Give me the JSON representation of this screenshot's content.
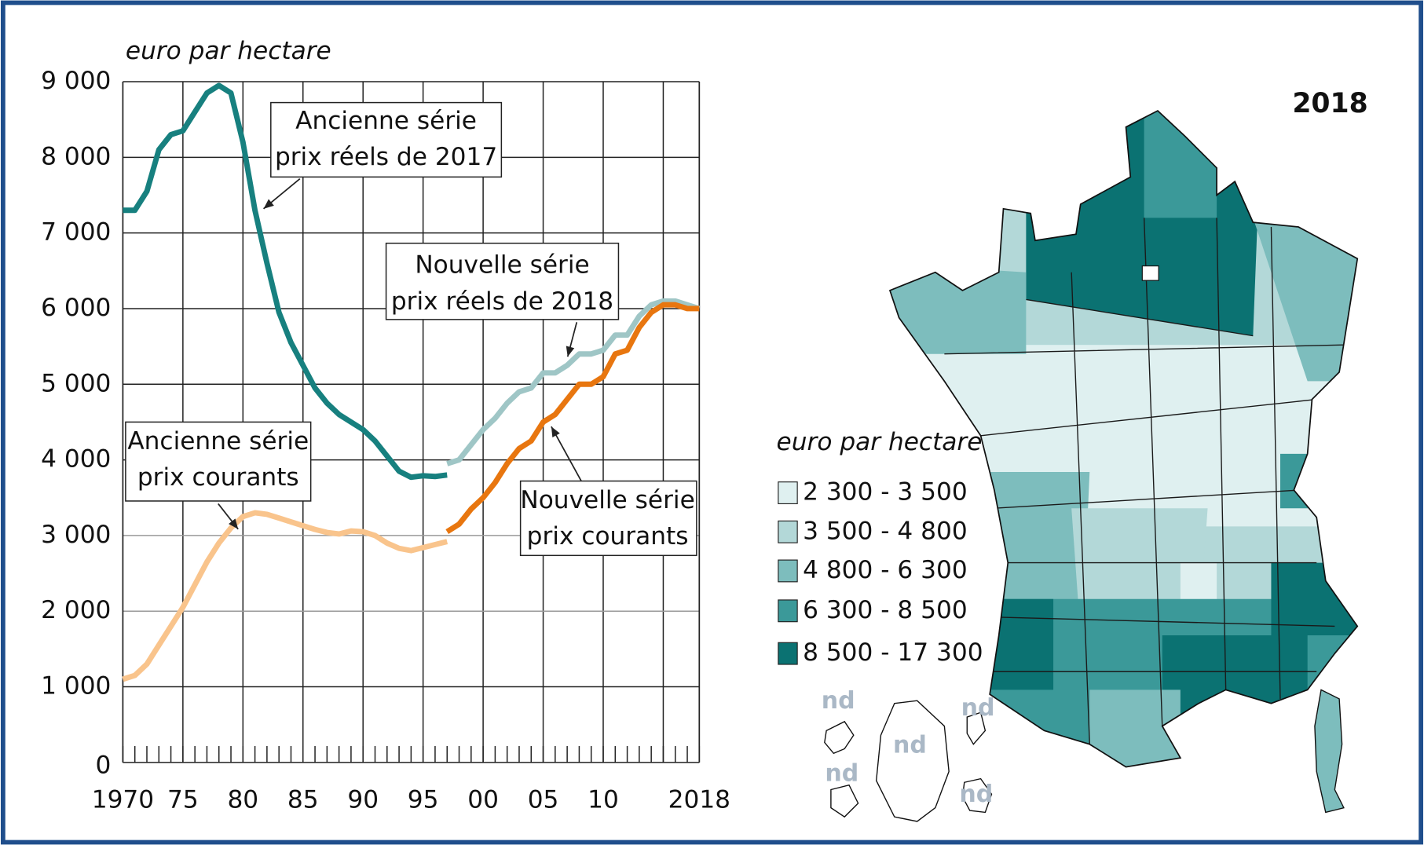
{
  "chart_data": [
    {
      "type": "line",
      "y_label": "euro par hectare",
      "x": [
        1970,
        1971,
        1972,
        1973,
        1974,
        1975,
        1976,
        1977,
        1978,
        1979,
        1980,
        1981,
        1982,
        1983,
        1984,
        1985,
        1986,
        1987,
        1988,
        1989,
        1990,
        1991,
        1992,
        1993,
        1994,
        1995,
        1996,
        1997,
        1998,
        1999,
        2000,
        2001,
        2002,
        2003,
        2004,
        2005,
        2006,
        2007,
        2008,
        2009,
        2010,
        2011,
        2012,
        2013,
        2014,
        2015,
        2016,
        2017,
        2018
      ],
      "xlim": [
        1970,
        2018
      ],
      "xticks": [
        1970,
        {
          "value": 1975,
          "label": "75"
        },
        {
          "value": 1980,
          "label": "80"
        },
        {
          "value": 1985,
          "label": "85"
        },
        {
          "value": 1990,
          "label": "90"
        },
        {
          "value": 1995,
          "label": "95"
        },
        {
          "value": 2000,
          "label": "00"
        },
        {
          "value": 2005,
          "label": "05"
        },
        {
          "value": 2010,
          "label": "10"
        },
        2018
      ],
      "ylim": [
        0,
        9000
      ],
      "yticks": [
        0,
        {
          "value": 1000,
          "label": "1 000"
        },
        {
          "value": 2000,
          "label": "2 000"
        },
        {
          "value": 3000,
          "label": "3 000"
        },
        {
          "value": 4000,
          "label": "4 000"
        },
        {
          "value": 5000,
          "label": "5 000"
        },
        {
          "value": 6000,
          "label": "6 000"
        },
        {
          "value": 7000,
          "label": "7 000"
        },
        {
          "value": 8000,
          "label": "8 000"
        },
        {
          "value": 9000,
          "label": "9 000"
        }
      ],
      "grid": true,
      "series": [
        {
          "name": [
            "Ancienne série",
            "prix réels de 2017"
          ],
          "color": "#17807f",
          "values": [
            7300,
            7300,
            7550,
            8100,
            8300,
            8350,
            8600,
            8850,
            8950,
            8850,
            8200,
            7300,
            6600,
            5950,
            5550,
            5250,
            4950,
            4750,
            4600,
            4500,
            4400,
            4250,
            4050,
            3850,
            3770,
            3790,
            3780,
            3800,
            null,
            null,
            null,
            null,
            null,
            null,
            null,
            null,
            null,
            null,
            null,
            null,
            null,
            null,
            null,
            null,
            null,
            null,
            null,
            null,
            null
          ]
        },
        {
          "name": [
            "Ancienne série",
            "prix courants"
          ],
          "color": "#f9c48c",
          "values": [
            1100,
            1150,
            1300,
            1550,
            1800,
            2050,
            2350,
            2650,
            2900,
            3100,
            3250,
            3300,
            3280,
            3230,
            3180,
            3130,
            3080,
            3040,
            3020,
            3060,
            3050,
            3000,
            2900,
            2830,
            2800,
            2840,
            2880,
            2920,
            null,
            null,
            null,
            null,
            null,
            null,
            null,
            null,
            null,
            null,
            null,
            null,
            null,
            null,
            null,
            null,
            null,
            null,
            null,
            null,
            null
          ]
        },
        {
          "name": [
            "Nouvelle série",
            "prix réels de 2018"
          ],
          "color": "#9fc6c6",
          "values": [
            null,
            null,
            null,
            null,
            null,
            null,
            null,
            null,
            null,
            null,
            null,
            null,
            null,
            null,
            null,
            null,
            null,
            null,
            null,
            null,
            null,
            null,
            null,
            null,
            null,
            null,
            null,
            3950,
            4000,
            4200,
            4400,
            4550,
            4750,
            4900,
            4950,
            5150,
            5150,
            5250,
            5400,
            5400,
            5450,
            5650,
            5650,
            5900,
            6050,
            6100,
            6100,
            6050,
            6000
          ]
        },
        {
          "name": [
            "Nouvelle série",
            "prix courants"
          ],
          "color": "#e8760f",
          "values": [
            null,
            null,
            null,
            null,
            null,
            null,
            null,
            null,
            null,
            null,
            null,
            null,
            null,
            null,
            null,
            null,
            null,
            null,
            null,
            null,
            null,
            null,
            null,
            null,
            null,
            null,
            null,
            3050,
            3150,
            3350,
            3500,
            3700,
            3950,
            4150,
            4250,
            4500,
            4600,
            4800,
            5000,
            5000,
            5100,
            5400,
            5450,
            5750,
            5950,
            6050,
            6050,
            6000,
            6000
          ]
        }
      ]
    },
    {
      "type": "map",
      "title": "2018",
      "legend_title": "euro par hectare",
      "missing_label": "nd",
      "classes": [
        {
          "label": "2 300 -   3 500",
          "color": "#dff0f0"
        },
        {
          "label": "3 500 -   4 800",
          "color": "#b3d8d8"
        },
        {
          "label": "4 800 -   6 300",
          "color": "#7dbdbd"
        },
        {
          "label": "6 300 -   8 500",
          "color": "#3b9999"
        },
        {
          "label": "8 500 - 17 300",
          "color": "#0b7272"
        }
      ]
    }
  ]
}
